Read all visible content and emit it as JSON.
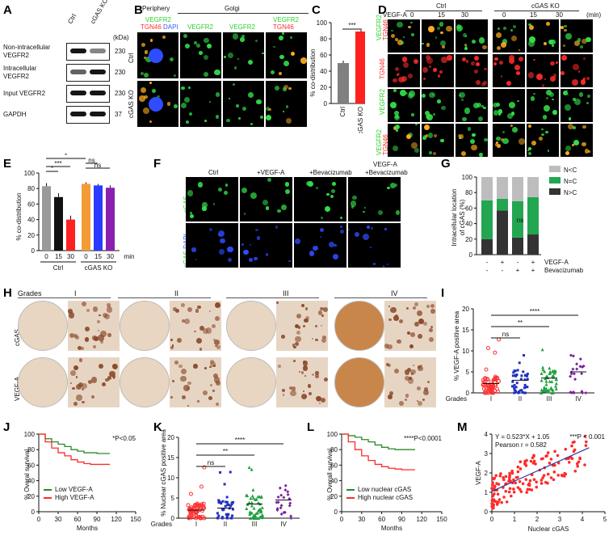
{
  "panel_labels": {
    "A": "A",
    "B": "B",
    "C": "C",
    "D": "D",
    "E": "E",
    "F": "F",
    "G": "G",
    "H": "H",
    "I": "I",
    "J": "J",
    "K": "K",
    "L": "L",
    "M": "M"
  },
  "panelA": {
    "conditions": [
      "Ctrl",
      "cGAS KO"
    ],
    "kda_label": "(kDa)",
    "rows": [
      {
        "label_1": "Non-intracellular",
        "label_2": "VEGFR2",
        "kda": "230"
      },
      {
        "label_1": "Intracellular",
        "label_2": "VEGFR2",
        "kda": "230"
      },
      {
        "label_1": "Input VEGFR2",
        "label_2": "",
        "kda": "230"
      },
      {
        "label_1": "GAPDH",
        "label_2": "",
        "kda": "37"
      }
    ]
  },
  "panelB": {
    "headers": {
      "periphery": "Periphery",
      "golgi": "Golgi"
    },
    "ch1_a": "VEGFR2",
    "ch1_b": "TGN46",
    "ch1_c": "DAPI",
    "ch2": "VEGFR2",
    "ch3": "VEGFR2",
    "ch4_a": "VEGFR2",
    "ch4_b": "TGN46",
    "rows": [
      "Ctrl",
      "cGAS KO"
    ]
  },
  "panelC": {
    "ylabel": "% co-distribution",
    "sig": "***",
    "chart_data": {
      "type": "bar",
      "categories": [
        "Ctrl",
        "cGAS KO"
      ],
      "values": [
        50,
        89
      ],
      "errors": [
        3,
        2
      ],
      "ylim": [
        0,
        100
      ],
      "yticks": [
        0,
        20,
        40,
        60,
        80,
        100
      ],
      "colors": [
        "#808080",
        "#ff2020"
      ]
    }
  },
  "panelD": {
    "group_ctrl": "Ctrl",
    "group_ko": "cGAS KO",
    "vegfa_label": "VEGF-A",
    "unit": "(min)",
    "times": [
      "0",
      "15",
      "30",
      "0",
      "15",
      "30"
    ],
    "row_labels": [
      [
        "VEGFR2",
        "TGN46"
      ],
      [
        "TGN46"
      ],
      [
        "VEGFR2"
      ],
      [
        "VEGFR2",
        "TGN46"
      ]
    ]
  },
  "panelE": {
    "ylabel": "% co-distribution",
    "xunit": "min",
    "groups": [
      "Ctrl",
      "cGAS KO"
    ],
    "sig_labels": [
      "*",
      "***",
      "*",
      "***",
      "ns",
      "ns"
    ],
    "chart_data": {
      "type": "bar",
      "categories": [
        "0",
        "15",
        "30",
        "0",
        "15",
        "30"
      ],
      "values": [
        83,
        69,
        40,
        86,
        84,
        81
      ],
      "errors": [
        4,
        5,
        5,
        2,
        2,
        3
      ],
      "ylim": [
        0,
        100
      ],
      "yticks": [
        0,
        20,
        40,
        60,
        80,
        100
      ],
      "colors": [
        "#9a9a9a",
        "#111111",
        "#ff2020",
        "#f39c36",
        "#2b3cff",
        "#8a1fb0"
      ]
    }
  },
  "panelF": {
    "columns": [
      "Ctrl",
      "+VEGF-A",
      "+Bevacizumab",
      "VEGF-A",
      "+Bevacizumab"
    ],
    "row1": "cGAS",
    "row2_a": "cGAS",
    "row2_b": "DAPI"
  },
  "panelG": {
    "ylabel_1": "Intracellular location",
    "ylabel_2": "of cGAS (%)",
    "legend": [
      "N<C",
      "N=C",
      "N>C"
    ],
    "sig": "ns",
    "treat_labels": [
      "VEGF-A",
      "Bevacizumab"
    ],
    "treat_signs": [
      [
        "-",
        "+",
        "-",
        "+"
      ],
      [
        "-",
        "-",
        "+",
        "+"
      ]
    ],
    "chart_data": {
      "type": "bar",
      "stacked": true,
      "categories": [
        "1",
        "2",
        "3",
        "4"
      ],
      "series": [
        {
          "name": "N>C",
          "values": [
            20,
            57,
            22,
            26
          ]
        },
        {
          "name": "N=C",
          "values": [
            50,
            15,
            47,
            48
          ]
        },
        {
          "name": "N<C",
          "values": [
            30,
            28,
            31,
            26
          ]
        }
      ],
      "ylim": [
        0,
        100
      ],
      "yticks": [
        0,
        20,
        40,
        60,
        80,
        100
      ],
      "colors": [
        "#333333",
        "#22a651",
        "#bdbdbd"
      ]
    }
  },
  "panelH": {
    "grades_label": "Grades",
    "grades": [
      "I",
      "II",
      "III",
      "IV"
    ],
    "rows": [
      "cGAS",
      "VEGF-A"
    ]
  },
  "panelI": {
    "ylabel": "% VEGF-A positive area",
    "xlabel": "Grades",
    "sig": [
      "ns",
      "**",
      "****"
    ],
    "chart_data": {
      "type": "scatter",
      "categories": [
        "I",
        "II",
        "III",
        "IV"
      ],
      "means": [
        2.2,
        3.0,
        3.5,
        5.0
      ],
      "ylim": [
        0,
        20
      ],
      "yticks": [
        0,
        5,
        10,
        15,
        20
      ],
      "colors": [
        "#ff3030",
        "#2030c0",
        "#20a040",
        "#7a1fa0"
      ]
    }
  },
  "panelJ": {
    "ylabel": "% Overal survival",
    "xlabel": "Months",
    "pval": "*P<0.05",
    "legend": [
      "Low VEGF-A",
      "High VEGF-A"
    ],
    "chart_data": {
      "type": "line",
      "xlim": [
        0,
        150
      ],
      "ylim": [
        0,
        100
      ],
      "xticks": [
        0,
        30,
        60,
        90,
        120,
        150
      ],
      "yticks": [
        0,
        20,
        40,
        60,
        80,
        100
      ],
      "series": [
        {
          "name": "Low VEGF-A",
          "x": [
            0,
            10,
            20,
            30,
            40,
            50,
            60,
            70,
            80,
            90,
            100,
            110
          ],
          "y": [
            100,
            94,
            90,
            87,
            84,
            80,
            78,
            76,
            76,
            75,
            75,
            75
          ]
        },
        {
          "name": "High VEGF-A",
          "x": [
            0,
            10,
            20,
            30,
            40,
            50,
            60,
            70,
            80,
            90,
            100,
            110
          ],
          "y": [
            100,
            90,
            82,
            76,
            72,
            67,
            64,
            62,
            61,
            61,
            61,
            61
          ]
        }
      ],
      "colors": [
        "#2a8a2a",
        "#ff2a2a"
      ]
    }
  },
  "panelK": {
    "ylabel": "% Nuclear cGAS positive area",
    "xlabel": "Grades",
    "sig": [
      "ns",
      "**",
      "****"
    ],
    "chart_data": {
      "type": "scatter",
      "categories": [
        "I",
        "II",
        "III",
        "IV"
      ],
      "means": [
        2.0,
        2.5,
        3.5,
        4.5
      ],
      "ylim": [
        0,
        20
      ],
      "yticks": [
        0,
        5,
        10,
        15,
        20
      ],
      "colors": [
        "#ff3030",
        "#2030c0",
        "#20a040",
        "#7a1fa0"
      ]
    }
  },
  "panelL": {
    "ylabel": "% Overall survival",
    "xlabel": "Months",
    "pval": "****P<0.0001",
    "legend": [
      "Low nuclear cGAS",
      "High nuclear cGAS"
    ],
    "chart_data": {
      "type": "line",
      "xlim": [
        0,
        150
      ],
      "ylim": [
        0,
        100
      ],
      "xticks": [
        0,
        30,
        60,
        90,
        120,
        150
      ],
      "yticks": [
        0,
        20,
        40,
        60,
        80,
        100
      ],
      "series": [
        {
          "name": "Low nuclear cGAS",
          "x": [
            0,
            10,
            20,
            30,
            40,
            50,
            60,
            70,
            80,
            90,
            100,
            110
          ],
          "y": [
            100,
            98,
            96,
            93,
            90,
            86,
            83,
            81,
            80,
            80,
            80,
            80
          ]
        },
        {
          "name": "High nuclear cGAS",
          "x": [
            0,
            10,
            20,
            30,
            40,
            50,
            60,
            70,
            80,
            90,
            100,
            110
          ],
          "y": [
            100,
            90,
            80,
            72,
            66,
            61,
            58,
            56,
            55,
            54,
            54,
            54
          ]
        }
      ],
      "colors": [
        "#2a8a2a",
        "#ff2a2a"
      ]
    }
  },
  "panelM": {
    "ylabel": "VEGF-A",
    "xlabel": "Nuclear cGAS",
    "equation": "Y = 0.523*X + 1.05",
    "pval": "***P < 0.001",
    "pearson": "Pearson r = 0.582",
    "chart_data": {
      "type": "scatter",
      "xlim": [
        0,
        5
      ],
      "ylim": [
        0,
        4
      ],
      "xticks": [
        0,
        1,
        2,
        3,
        4,
        5
      ],
      "yticks": [
        0,
        1,
        2,
        3,
        4
      ],
      "fit": {
        "slope": 0.523,
        "intercept": 1.05
      },
      "colors": [
        "#ff2a2a",
        "#2a3aa0"
      ]
    }
  }
}
